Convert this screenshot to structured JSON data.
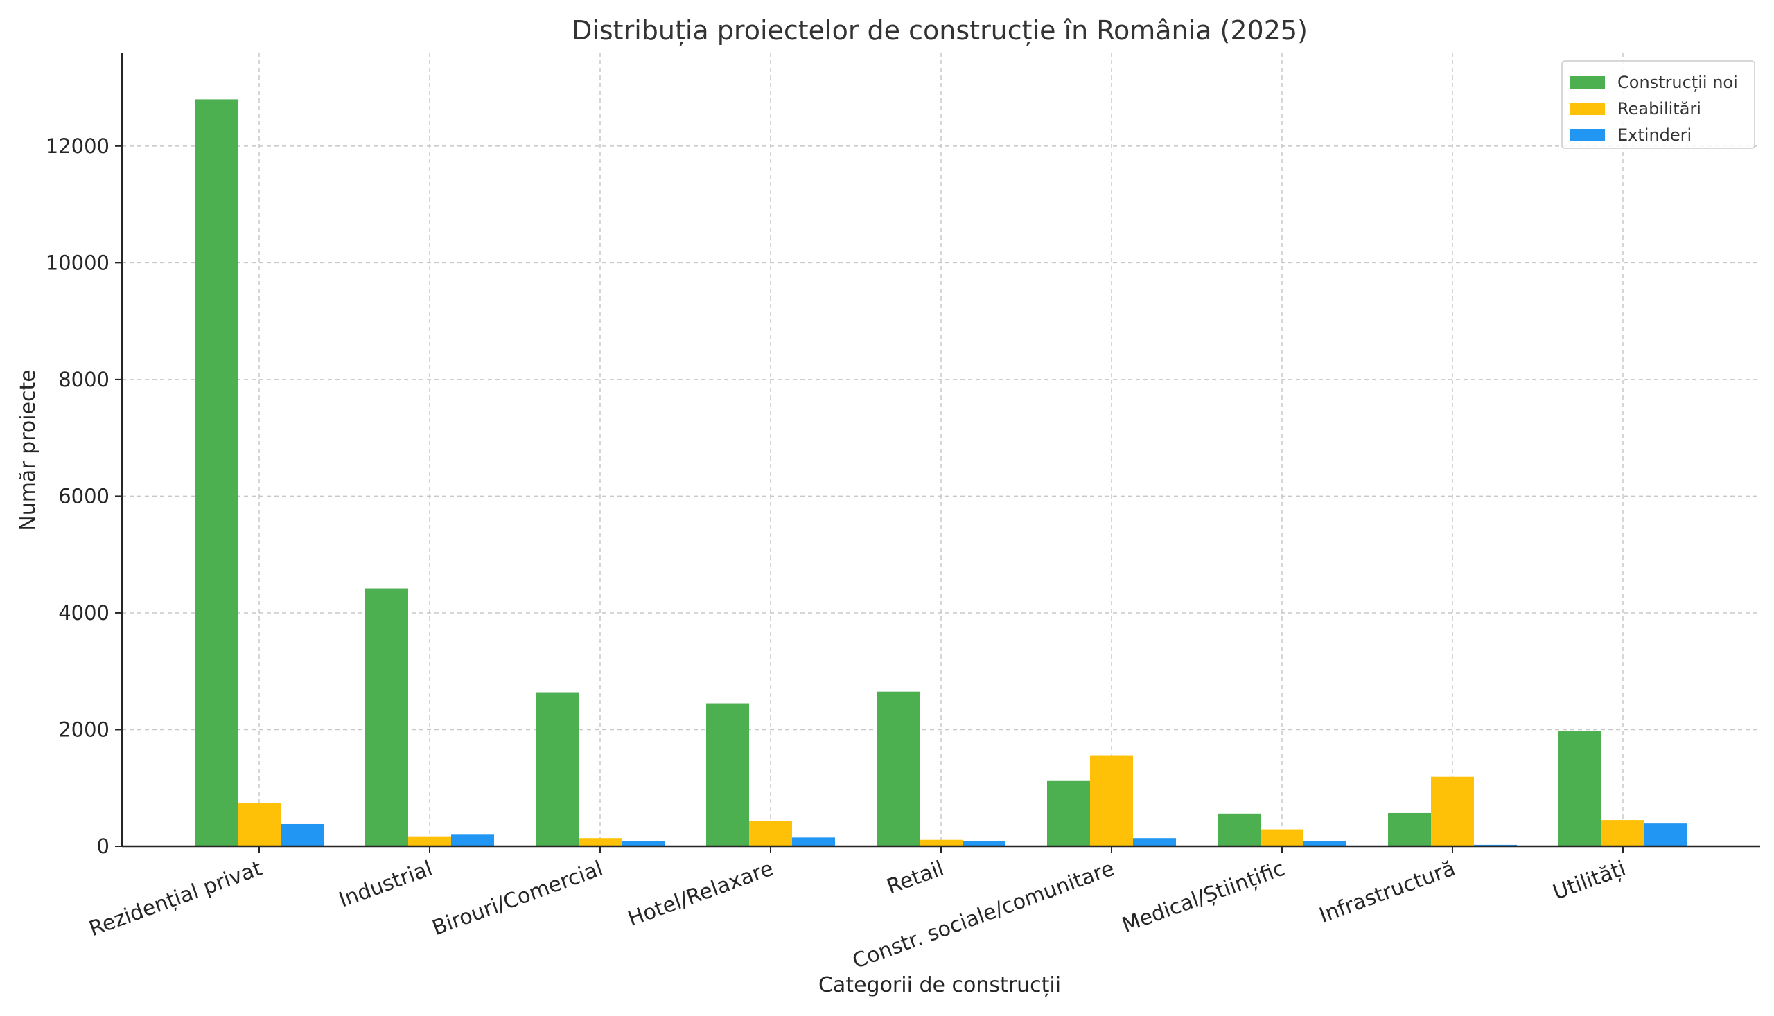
{
  "chart_data": {
    "type": "bar",
    "title": "Distribuția proiectelor de construcție în România (2025)",
    "xlabel": "Categorii de construcții",
    "ylabel": "Număr proiecte",
    "categories": [
      "Rezidențial privat",
      "Industrial",
      "Birouri/Comercial",
      "Hotel/Relaxare",
      "Retail",
      "Constr. sociale/comunitare",
      "Medical/Științific",
      "Infrastructură",
      "Utilități"
    ],
    "series": [
      {
        "name": "Construcții noi",
        "color": "#4caf50",
        "values": [
          12800,
          4420,
          2640,
          2450,
          2650,
          1130,
          560,
          570,
          1980
        ]
      },
      {
        "name": "Reabilitări",
        "color": "#ffc107",
        "values": [
          740,
          170,
          140,
          430,
          110,
          1560,
          290,
          1190,
          450
        ]
      },
      {
        "name": "Extinderi",
        "color": "#2196f3",
        "values": [
          380,
          210,
          85,
          150,
          95,
          140,
          95,
          25,
          390
        ]
      }
    ],
    "ylim": [
      0,
      13600
    ],
    "yticks": [
      0,
      2000,
      4000,
      6000,
      8000,
      10000,
      12000
    ],
    "grid": true,
    "legend_position": "top-right"
  }
}
